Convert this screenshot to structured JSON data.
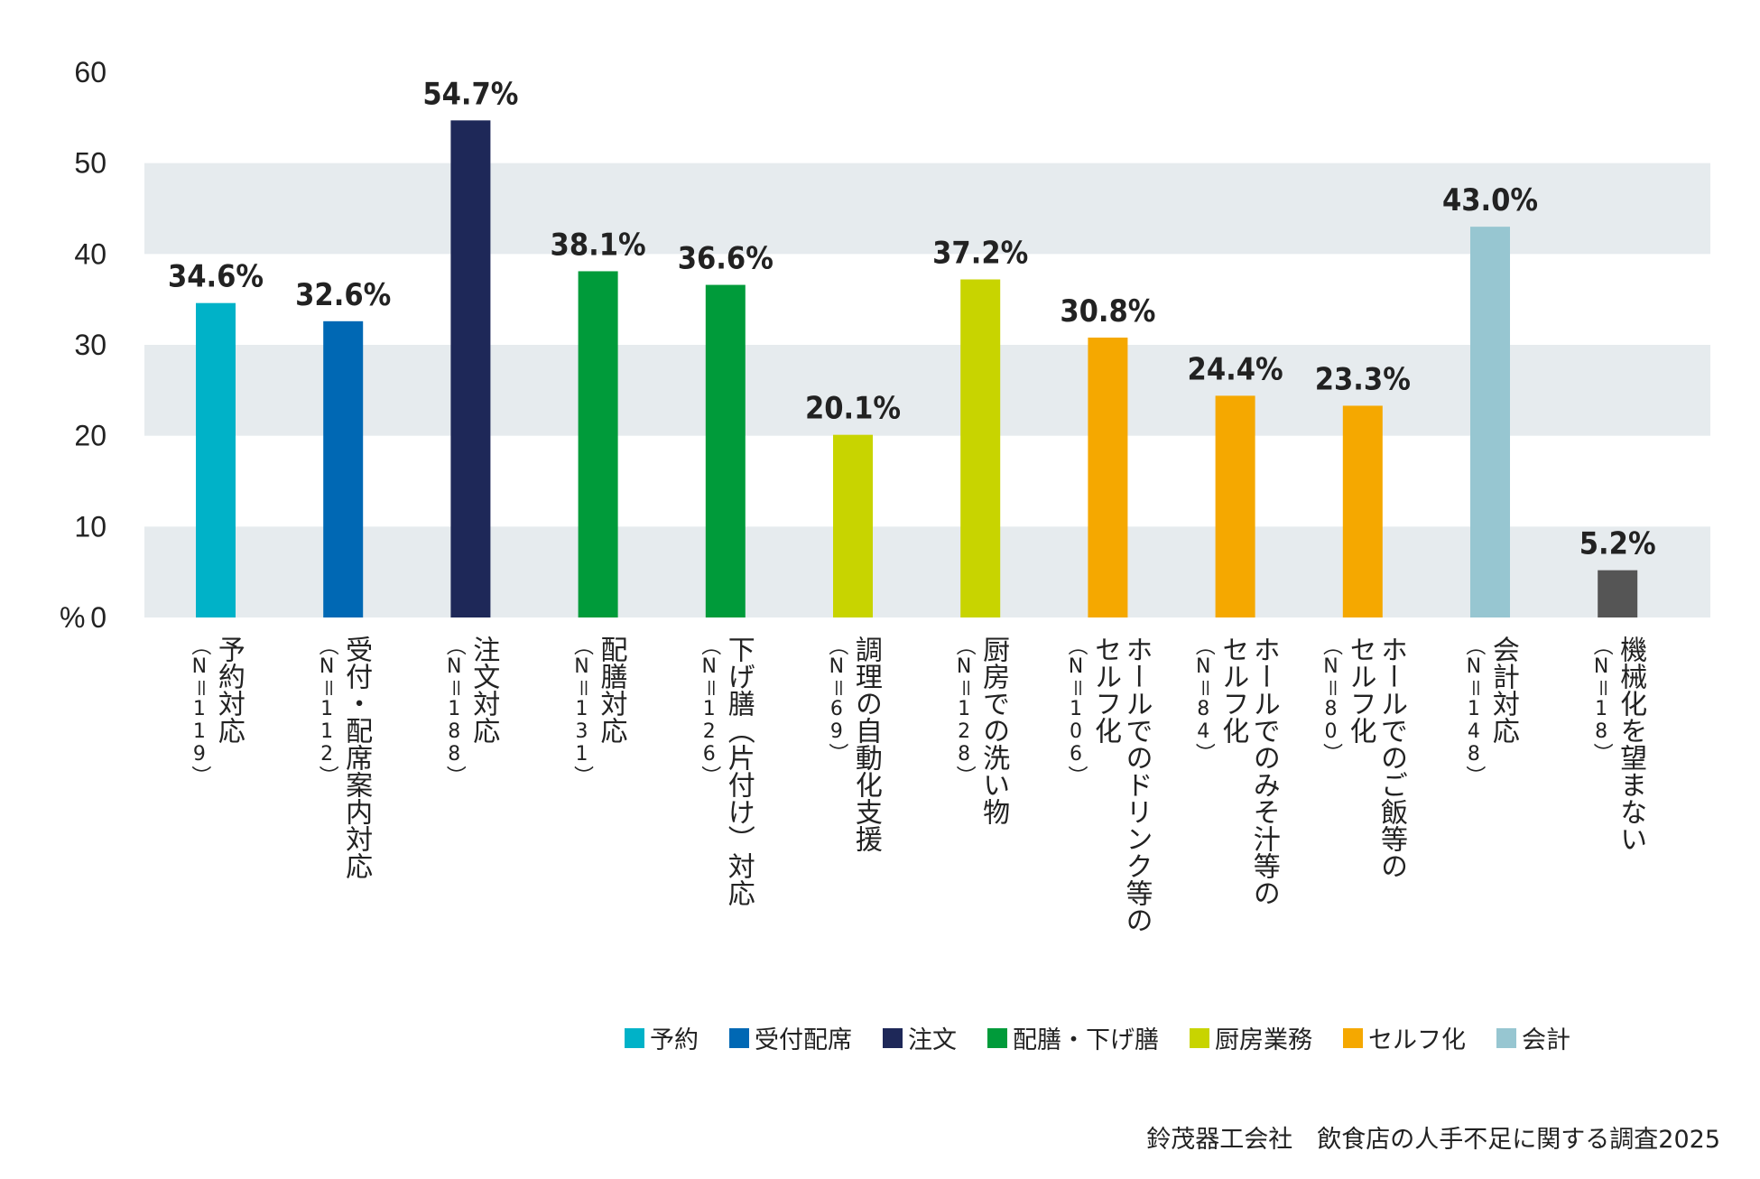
{
  "chart_data": {
    "type": "bar",
    "y_unit_label": "%",
    "ylim": [
      0,
      60
    ],
    "yticks": [
      0,
      10,
      20,
      30,
      40,
      50,
      60
    ],
    "grid_bands": true,
    "categories": [
      {
        "label": "予約対応",
        "n": "（N＝119）",
        "value": 34.6,
        "value_label": "34.6%",
        "color": "#00B2C8"
      },
      {
        "label": "受付・配席案内対応",
        "n": "（N＝112）",
        "value": 32.6,
        "value_label": "32.6%",
        "color": "#0068B4"
      },
      {
        "label": "注文対応",
        "n": "（N＝188）",
        "value": 54.7,
        "value_label": "54.7%",
        "color": "#1E2858"
      },
      {
        "label": "配膳対応",
        "n": "（N＝131）",
        "value": 38.1,
        "value_label": "38.1%",
        "color": "#009B3A"
      },
      {
        "label": "下げ膳（片付け）対応",
        "n": "（N＝126）",
        "value": 36.6,
        "value_label": "36.6%",
        "color": "#009B3A"
      },
      {
        "label": "調理の自動化支援",
        "n": "（N＝69）",
        "value": 20.1,
        "value_label": "20.1%",
        "color": "#C8D400"
      },
      {
        "label": "厨房での洗い物",
        "n": "（N＝128）",
        "value": 37.2,
        "value_label": "37.2%",
        "color": "#C8D400"
      },
      {
        "label": "ホールでのドリンク等の\nセルフ化",
        "n": "（N＝106）",
        "value": 30.8,
        "value_label": "30.8%",
        "color": "#F5A800"
      },
      {
        "label": "ホールでのみそ汁等の\nセルフ化",
        "n": "（N＝84）",
        "value": 24.4,
        "value_label": "24.4%",
        "color": "#F5A800"
      },
      {
        "label": "ホールでのご飯等の\nセルフ化",
        "n": "（N＝80）",
        "value": 23.3,
        "value_label": "23.3%",
        "color": "#F5A800"
      },
      {
        "label": "会計対応",
        "n": "（N＝148）",
        "value": 43.0,
        "value_label": "43.0%",
        "color": "#97C6D1"
      },
      {
        "label": "機械化を望まない",
        "n": "（N＝18）",
        "value": 5.2,
        "value_label": "5.2%",
        "color": "#555555"
      }
    ],
    "legend": [
      {
        "label": "予約",
        "color": "#00B2C8"
      },
      {
        "label": "受付配席",
        "color": "#0068B4"
      },
      {
        "label": "注文",
        "color": "#1E2858"
      },
      {
        "label": "配膳・下げ膳",
        "color": "#009B3A"
      },
      {
        "label": "厨房業務",
        "color": "#C8D400"
      },
      {
        "label": "セルフ化",
        "color": "#F5A800"
      },
      {
        "label": "会計",
        "color": "#97C6D1"
      }
    ],
    "band_color": "#E6EBEE"
  },
  "source": "鈴茂器工会社　飲食店の人手不足に関する調査2025"
}
